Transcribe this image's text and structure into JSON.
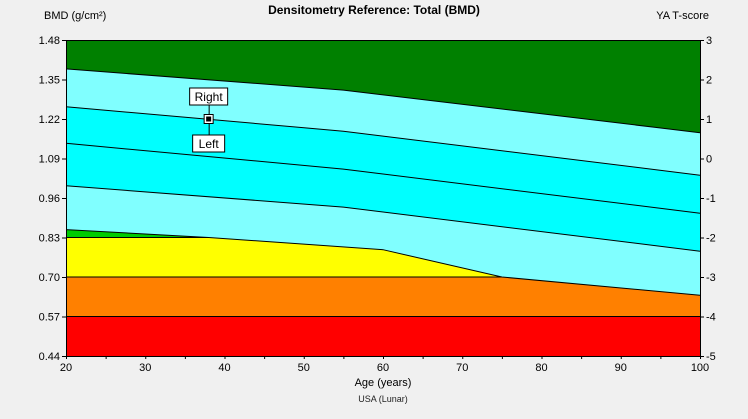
{
  "title": "Densitometry Reference: Total (BMD)",
  "footnote": "USA (Lunar)",
  "axes": {
    "y_left": {
      "label": "BMD (g/cm²)",
      "min": 0.44,
      "max": 1.48,
      "ticks": [
        "1.48",
        "1.35",
        "1.22",
        "1.09",
        "0.96",
        "0.83",
        "0.70",
        "0.57",
        "0.44"
      ]
    },
    "y_right": {
      "label": "YA T-score",
      "min": -5,
      "max": 3,
      "ticks": [
        "3",
        "2",
        "1",
        "0",
        "-1",
        "-2",
        "-3",
        "-4",
        "-5"
      ]
    },
    "x": {
      "label": "Age (years)",
      "min": 20,
      "max": 100,
      "minor_step": 5,
      "ticks": [
        "20",
        "30",
        "40",
        "50",
        "60",
        "70",
        "80",
        "90",
        "100"
      ]
    }
  },
  "colors": {
    "background": "#f0f0f0",
    "band_dark_green": "#008000",
    "band_pale_cyan": "#80ffff",
    "band_cyan": "#00ffff",
    "band_green": "#00cc00",
    "band_yellow": "#ffff00",
    "band_orange": "#ff8000",
    "band_red": "#ff0000",
    "line": "#000000",
    "text": "#000000"
  },
  "chart_data": {
    "type": "area",
    "title": "Densitometry Reference: Total (BMD)",
    "xlabel": "Age (years)",
    "ylabel": "BMD (g/cm²)",
    "ylabel_right": "YA T-score",
    "xlim": [
      20,
      100
    ],
    "ylim": [
      0.44,
      1.48
    ],
    "ylim_right": [
      -5,
      3
    ],
    "t_score_per_bmd": 0.13,
    "grid": false,
    "bands": [
      {
        "name": "above-plus-2sd-dark-green",
        "color": "#008000",
        "points": [
          [
            20,
            1.48
          ],
          [
            100,
            1.48
          ],
          [
            100,
            1.175
          ],
          [
            55,
            1.315
          ],
          [
            20,
            1.385
          ]
        ]
      },
      {
        "name": "plus-1-to-2sd-pale-cyan",
        "color": "#80ffff",
        "points": [
          [
            20,
            1.385
          ],
          [
            55,
            1.315
          ],
          [
            100,
            1.175
          ],
          [
            100,
            1.035
          ],
          [
            55,
            1.18
          ],
          [
            20,
            1.26
          ]
        ]
      },
      {
        "name": "mean-to-plus-1sd-cyan",
        "color": "#00ffff",
        "points": [
          [
            20,
            1.26
          ],
          [
            55,
            1.18
          ],
          [
            100,
            1.035
          ],
          [
            100,
            0.91
          ],
          [
            55,
            1.055
          ],
          [
            20,
            1.14
          ]
        ]
      },
      {
        "name": "mean-to-minus-1sd-cyan",
        "color": "#00ffff",
        "points": [
          [
            20,
            1.14
          ],
          [
            55,
            1.055
          ],
          [
            100,
            0.91
          ],
          [
            100,
            0.785
          ],
          [
            55,
            0.93
          ],
          [
            20,
            1.0
          ]
        ]
      },
      {
        "name": "minus-1-to-2sd-pale-cyan",
        "color": "#80ffff",
        "points": [
          [
            20,
            1.0
          ],
          [
            55,
            0.93
          ],
          [
            100,
            0.785
          ],
          [
            100,
            0.64
          ],
          [
            75,
            0.7
          ],
          [
            60,
            0.79
          ],
          [
            38,
            0.83
          ],
          [
            20,
            0.856
          ]
        ]
      },
      {
        "name": "below-2sd-green-wedge",
        "color": "#00cc00",
        "points": [
          [
            20,
            0.856
          ],
          [
            38,
            0.83
          ],
          [
            20,
            0.83
          ]
        ]
      },
      {
        "name": "yellow-band-t-minus2-to-minus3",
        "color": "#ffff00",
        "points": [
          [
            20,
            0.83
          ],
          [
            38,
            0.83
          ],
          [
            60,
            0.79
          ],
          [
            75,
            0.7
          ],
          [
            20,
            0.7
          ]
        ]
      },
      {
        "name": "orange-band-t-minus3-to-minus4",
        "color": "#ff8000",
        "points": [
          [
            20,
            0.7
          ],
          [
            75,
            0.7
          ],
          [
            100,
            0.64
          ],
          [
            100,
            0.57
          ],
          [
            20,
            0.57
          ]
        ]
      },
      {
        "name": "red-band-t-minus4-to-minus5",
        "color": "#ff0000",
        "points": [
          [
            20,
            0.57
          ],
          [
            100,
            0.57
          ],
          [
            100,
            0.44
          ],
          [
            20,
            0.44
          ]
        ]
      }
    ],
    "boundary_lines": [
      {
        "name": "plus-2sd-line",
        "points": [
          [
            20,
            1.385
          ],
          [
            55,
            1.315
          ],
          [
            100,
            1.175
          ]
        ]
      },
      {
        "name": "plus-1sd-line",
        "points": [
          [
            20,
            1.26
          ],
          [
            55,
            1.18
          ],
          [
            100,
            1.035
          ]
        ]
      },
      {
        "name": "mean-line",
        "points": [
          [
            20,
            1.14
          ],
          [
            55,
            1.055
          ],
          [
            100,
            0.91
          ]
        ]
      },
      {
        "name": "minus-1sd-line",
        "points": [
          [
            20,
            1.0
          ],
          [
            55,
            0.93
          ],
          [
            100,
            0.785
          ]
        ]
      },
      {
        "name": "minus-2sd-line",
        "points": [
          [
            20,
            0.856
          ],
          [
            38,
            0.83
          ],
          [
            60,
            0.79
          ],
          [
            75,
            0.7
          ],
          [
            100,
            0.64
          ]
        ]
      },
      {
        "name": "t-minus2-threshold",
        "points": [
          [
            20,
            0.83
          ],
          [
            38,
            0.83
          ]
        ]
      },
      {
        "name": "t-minus3-threshold",
        "points": [
          [
            20,
            0.7
          ],
          [
            75,
            0.7
          ]
        ]
      },
      {
        "name": "t-minus4-threshold",
        "points": [
          [
            20,
            0.57
          ],
          [
            100,
            0.57
          ]
        ]
      }
    ],
    "points": [
      {
        "name": "Right",
        "age": 38,
        "bmd": 1.22
      },
      {
        "name": "Left",
        "age": 38,
        "bmd": 1.22
      }
    ],
    "marker": {
      "age": 38,
      "bmd": 1.22,
      "label_above": "Right",
      "label_below": "Left"
    }
  }
}
